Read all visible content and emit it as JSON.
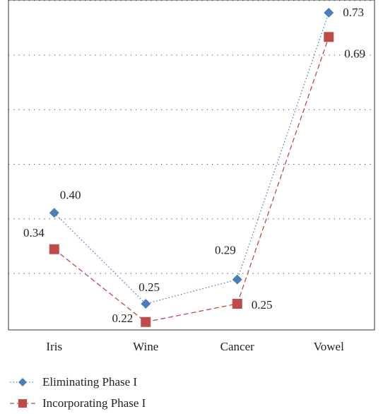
{
  "chart_data": {
    "type": "line",
    "categories": [
      "Iris",
      "Wine",
      "Cancer",
      "Vowel"
    ],
    "series": [
      {
        "name": "Eliminating Phase I",
        "values": [
          0.4,
          0.25,
          0.29,
          0.73
        ],
        "labels": [
          "0.40",
          "0.25",
          "0.29",
          "0.73"
        ],
        "color": "#4a7ebb",
        "marker": "diamond",
        "line": "dotted"
      },
      {
        "name": "Incorporating Phase I",
        "values": [
          0.34,
          0.22,
          0.25,
          0.69
        ],
        "labels": [
          "0.34",
          "0.22",
          "0.25",
          "0.69"
        ],
        "color": "#be4b48",
        "marker": "square",
        "line": "dashed"
      }
    ],
    "ylim": [
      0.2,
      0.74
    ],
    "gridlines": [
      0.3,
      0.39,
      0.48,
      0.57,
      0.66,
      0.75
    ],
    "grid": "dotted-horizontal",
    "legend": "bottom-left"
  }
}
